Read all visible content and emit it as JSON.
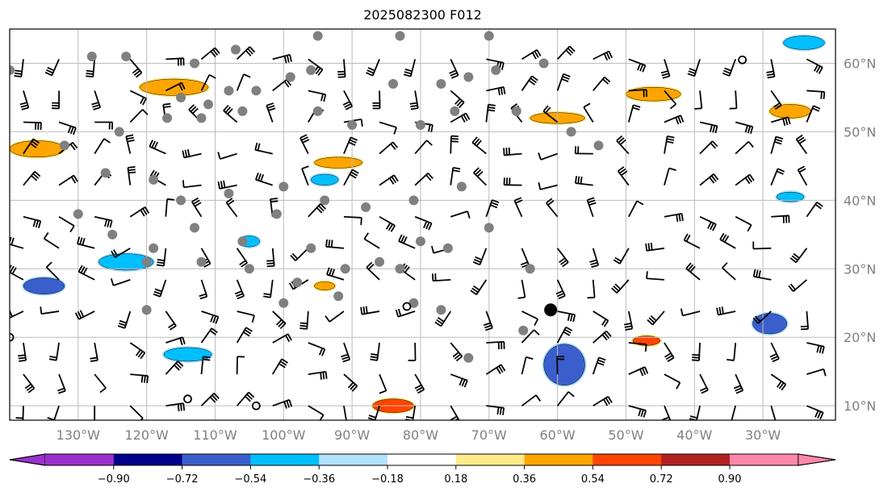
{
  "chart_data": {
    "type": "heatmap",
    "title": "2025082300 F012",
    "lon_range": [
      -140,
      -19.4
    ],
    "lat_range": [
      7.9,
      65
    ],
    "lon_ticks": [
      -130,
      -120,
      -110,
      -100,
      -90,
      -80,
      -70,
      -60,
      -50,
      -40,
      -30
    ],
    "lon_tick_labels": [
      "130°W",
      "120°W",
      "110°W",
      "100°W",
      "90°W",
      "80°W",
      "70°W",
      "60°W",
      "50°W",
      "40°W",
      "30°W"
    ],
    "lat_ticks": [
      60,
      50,
      40,
      30,
      20,
      10
    ],
    "lat_tick_labels": [
      "60°N",
      "50°N",
      "40°N",
      "30°N",
      "20°N",
      "10°N"
    ],
    "grid": true,
    "colorbar": {
      "levels": [
        -0.9,
        -0.72,
        -0.54,
        -0.36,
        -0.18,
        0.18,
        0.36,
        0.54,
        0.72,
        0.9
      ],
      "tick_labels": [
        "−0.90",
        "−0.72",
        "−0.54",
        "−0.36",
        "−0.18",
        "0.18",
        "0.36",
        "0.54",
        "0.72",
        "0.90"
      ],
      "colors": [
        "#9932cc",
        "#00008b",
        "#3a5fcd",
        "#00bfff",
        "#b0e2ff",
        "#ffffff",
        "#ffeb8a",
        "#ffa500",
        "#ff4500",
        "#b22222",
        "#ff88aa"
      ],
      "extend": "both",
      "placement": "bottom"
    },
    "patches": [
      {
        "lon": -116,
        "lat": 56.5,
        "rlon": 5,
        "rlat": 1.2,
        "value": 0.5
      },
      {
        "lon": -136,
        "lat": 47.5,
        "rlon": 4,
        "rlat": 1.2,
        "value": 0.5
      },
      {
        "lon": -92,
        "lat": 45.5,
        "rlon": 3.5,
        "rlat": 0.8,
        "value": 0.5
      },
      {
        "lon": -60,
        "lat": 52,
        "rlon": 4,
        "rlat": 0.8,
        "value": 0.5
      },
      {
        "lon": -46,
        "lat": 55.5,
        "rlon": 4,
        "rlat": 1,
        "value": 0.5
      },
      {
        "lon": -26,
        "lat": 53,
        "rlon": 3,
        "rlat": 1,
        "value": 0.5
      },
      {
        "lon": -84,
        "lat": 10,
        "rlon": 3,
        "rlat": 1,
        "value": 0.6
      },
      {
        "lon": -94,
        "lat": 27.5,
        "rlon": 1.5,
        "rlat": 0.6,
        "value": 0.45
      },
      {
        "lon": -47,
        "lat": 19.5,
        "rlon": 2,
        "rlat": 0.7,
        "value": 0.55
      },
      {
        "lon": -135,
        "lat": 27.5,
        "rlon": 3,
        "rlat": 1.2,
        "value": -0.6
      },
      {
        "lon": -123,
        "lat": 31,
        "rlon": 4,
        "rlat": 1.2,
        "value": -0.45
      },
      {
        "lon": -114,
        "lat": 17.5,
        "rlon": 3.5,
        "rlat": 1,
        "value": -0.45
      },
      {
        "lon": -59,
        "lat": 16,
        "rlon": 3,
        "rlat": 3,
        "value": -0.6
      },
      {
        "lon": -29,
        "lat": 22,
        "rlon": 2.5,
        "rlat": 1.5,
        "value": -0.6
      },
      {
        "lon": -24,
        "lat": 63,
        "rlon": 3,
        "rlat": 1,
        "value": -0.45
      },
      {
        "lon": -26,
        "lat": 40.5,
        "rlon": 2,
        "rlat": 0.7,
        "value": -0.45
      },
      {
        "lon": -94,
        "lat": 43,
        "rlon": 2,
        "rlat": 0.8,
        "value": -0.45
      },
      {
        "lon": -105,
        "lat": 34,
        "rlon": 1.5,
        "rlat": 0.8,
        "value": -0.45
      }
    ],
    "stations": [
      [
        -140,
        59
      ],
      [
        -128,
        61
      ],
      [
        -123,
        61
      ],
      [
        -113,
        60
      ],
      [
        -107,
        62
      ],
      [
        -95,
        64
      ],
      [
        -83,
        64
      ],
      [
        -73,
        58
      ],
      [
        -70,
        64
      ],
      [
        -62,
        60
      ],
      [
        -115,
        55
      ],
      [
        -111,
        54
      ],
      [
        -108,
        56
      ],
      [
        -104,
        56
      ],
      [
        -99,
        58
      ],
      [
        -96,
        59
      ],
      [
        -84,
        57
      ],
      [
        -77,
        57
      ],
      [
        -75,
        53
      ],
      [
        -69,
        59
      ],
      [
        -124,
        50
      ],
      [
        -117,
        52
      ],
      [
        -112,
        52
      ],
      [
        -106,
        53
      ],
      [
        -95,
        53
      ],
      [
        -90,
        51
      ],
      [
        -80,
        51
      ],
      [
        -66,
        53
      ],
      [
        -58,
        50
      ],
      [
        -54,
        48
      ],
      [
        -132,
        48
      ],
      [
        -126,
        44
      ],
      [
        -119,
        43
      ],
      [
        -115,
        40
      ],
      [
        -108,
        41
      ],
      [
        -100,
        42
      ],
      [
        -94,
        40
      ],
      [
        -88,
        39
      ],
      [
        -81,
        40
      ],
      [
        -74,
        42
      ],
      [
        -130,
        38
      ],
      [
        -125,
        35
      ],
      [
        -119,
        33
      ],
      [
        -113,
        36
      ],
      [
        -106,
        34
      ],
      [
        -101,
        38
      ],
      [
        -96,
        33
      ],
      [
        -91,
        30
      ],
      [
        -86,
        31
      ],
      [
        -80,
        34
      ],
      [
        -120,
        31
      ],
      [
        -112,
        31
      ],
      [
        -105,
        30
      ],
      [
        -98,
        28
      ],
      [
        -92,
        26
      ],
      [
        -83,
        30
      ],
      [
        -76,
        33
      ],
      [
        -70,
        36
      ],
      [
        -64,
        30
      ],
      [
        -81,
        25
      ],
      [
        -77,
        24
      ],
      [
        -73,
        17
      ],
      [
        -65,
        21
      ],
      [
        -120,
        24
      ],
      [
        -100,
        25
      ]
    ],
    "markers": [
      {
        "lon": -61,
        "lat": 24,
        "kind": "large-dot"
      },
      {
        "lon": -140,
        "lat": 20,
        "kind": "ring"
      },
      {
        "lon": -104,
        "lat": 10,
        "kind": "ring"
      },
      {
        "lon": -114,
        "lat": 11,
        "kind": "ring"
      },
      {
        "lon": -82,
        "lat": 24.5,
        "kind": "ring"
      },
      {
        "lon": -33,
        "lat": 60.5,
        "kind": "ring"
      }
    ]
  }
}
